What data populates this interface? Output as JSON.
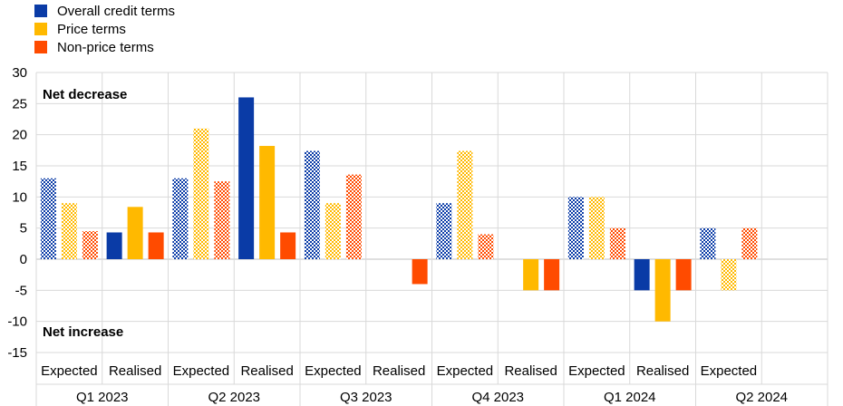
{
  "chart_data": {
    "type": "bar",
    "legend": [
      {
        "name": "Overall credit terms",
        "color": "#0a3ba6"
      },
      {
        "name": "Price terms",
        "color": "#ffb900"
      },
      {
        "name": "Non-price terms",
        "color": "#ff4b00"
      }
    ],
    "ylim": [
      -15,
      30
    ],
    "yticks": [
      -15,
      -10,
      -5,
      0,
      5,
      10,
      15,
      20,
      25,
      30
    ],
    "annotations": {
      "top": "Net decrease",
      "bottom": "Net increase"
    },
    "groups": [
      {
        "quarter": "Q1 2023",
        "subgroups": [
          {
            "label": "Expected",
            "expected": true,
            "values": [
              13,
              9,
              4.5
            ]
          },
          {
            "label": "Realised",
            "expected": false,
            "values": [
              4.3,
              8.4,
              4.3
            ]
          }
        ]
      },
      {
        "quarter": "Q2 2023",
        "subgroups": [
          {
            "label": "Expected",
            "expected": true,
            "values": [
              13,
              21,
              12.5
            ]
          },
          {
            "label": "Realised",
            "expected": false,
            "values": [
              26,
              18.2,
              4.3
            ]
          }
        ]
      },
      {
        "quarter": "Q3 2023",
        "subgroups": [
          {
            "label": "Expected",
            "expected": true,
            "values": [
              17.4,
              9,
              13.6
            ]
          },
          {
            "label": "Realised",
            "expected": false,
            "values": [
              0,
              0,
              -4
            ]
          }
        ]
      },
      {
        "quarter": "Q4 2023",
        "subgroups": [
          {
            "label": "Expected",
            "expected": true,
            "values": [
              9,
              17.4,
              4
            ]
          },
          {
            "label": "Realised",
            "expected": false,
            "values": [
              0,
              -5,
              -5
            ]
          }
        ]
      },
      {
        "quarter": "Q1 2024",
        "subgroups": [
          {
            "label": "Expected",
            "expected": true,
            "values": [
              10,
              10,
              5
            ]
          },
          {
            "label": "Realised",
            "expected": false,
            "values": [
              -5,
              -10,
              -5
            ]
          }
        ]
      },
      {
        "quarter": "Q2 2024",
        "subgroups": [
          {
            "label": "Expected",
            "expected": true,
            "values": [
              5,
              -5,
              5
            ]
          }
        ]
      }
    ]
  }
}
